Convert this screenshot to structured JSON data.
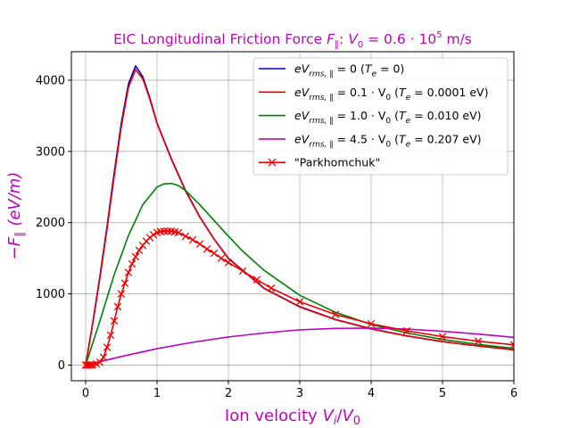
{
  "chart_data": {
    "type": "line",
    "title": "EIC Longitudinal Friction Force F∥: V₀ = 0.6·10⁵ m/s",
    "xlabel": "Ion velocity Vi/V₀",
    "ylabel": "−F∥ (eV/m)",
    "xlim": [
      -0.2,
      6.0
    ],
    "ylim": [
      -220,
      4400
    ],
    "xticks": [
      0,
      1,
      2,
      3,
      4,
      5,
      6
    ],
    "yticks": [
      0,
      1000,
      2000,
      3000,
      4000
    ],
    "grid": true,
    "legend_position": "top-right",
    "text_color": "#bf00bf",
    "series": [
      {
        "name": "eV_rms,∥ = 0 (T_e = 0)",
        "color": "#0000cc",
        "marker": "none",
        "x": [
          0,
          0.1,
          0.2,
          0.3,
          0.4,
          0.5,
          0.6,
          0.7,
          0.8,
          0.9,
          1.0,
          1.2,
          1.4,
          1.6,
          1.8,
          2.0,
          2.5,
          3.0,
          3.5,
          4.0,
          4.5,
          5.0,
          5.5,
          6.0
        ],
        "y": [
          0,
          600,
          1250,
          1950,
          2700,
          3400,
          3950,
          4200,
          4050,
          3750,
          3400,
          2900,
          2450,
          2080,
          1770,
          1500,
          1080,
          820,
          640,
          510,
          410,
          330,
          270,
          215
        ]
      },
      {
        "name": "eV_rms,∥ = 0.1·V₀ (T_e = 0.0001 eV)",
        "color": "#ee0000",
        "marker": "none",
        "x": [
          0,
          0.1,
          0.2,
          0.3,
          0.4,
          0.5,
          0.6,
          0.7,
          0.8,
          0.9,
          1.0,
          1.2,
          1.4,
          1.6,
          1.8,
          2.0,
          2.5,
          3.0,
          3.5,
          4.0,
          4.5,
          5.0,
          5.5,
          6.0
        ],
        "y": [
          0,
          580,
          1220,
          1910,
          2650,
          3350,
          3900,
          4150,
          4020,
          3730,
          3390,
          2890,
          2440,
          2075,
          1765,
          1495,
          1075,
          815,
          637,
          507,
          408,
          328,
          268,
          213
        ]
      },
      {
        "name": "eV_rms,∥ = 1.0·V₀ (T_e = 0.010 eV)",
        "color": "#007f00",
        "marker": "none",
        "x": [
          0,
          0.2,
          0.4,
          0.6,
          0.8,
          1.0,
          1.1,
          1.2,
          1.3,
          1.4,
          1.6,
          1.8,
          2.0,
          2.2,
          2.5,
          3.0,
          3.5,
          4.0,
          4.5,
          5.0,
          5.5,
          6.0
        ],
        "y": [
          0,
          620,
          1270,
          1820,
          2250,
          2500,
          2545,
          2550,
          2520,
          2450,
          2250,
          2030,
          1810,
          1600,
          1330,
          980,
          740,
          570,
          450,
          360,
          290,
          235
        ]
      },
      {
        "name": "eV_rms,∥ = 4.5·V₀ (T_e = 0.207 eV)",
        "color": "#bf00bf",
        "marker": "none",
        "x": [
          0,
          0.5,
          1.0,
          1.5,
          2.0,
          2.5,
          3.0,
          3.5,
          4.0,
          4.5,
          5.0,
          5.5,
          6.0
        ],
        "y": [
          0,
          120,
          230,
          320,
          395,
          450,
          495,
          515,
          520,
          505,
          475,
          435,
          390
        ]
      },
      {
        "name": "\"Parkhomchuk\"",
        "color": "#ee0000",
        "marker": "x",
        "x": [
          0,
          0.025,
          0.05,
          0.075,
          0.1,
          0.15,
          0.2,
          0.25,
          0.3,
          0.35,
          0.4,
          0.45,
          0.5,
          0.55,
          0.6,
          0.65,
          0.7,
          0.75,
          0.8,
          0.85,
          0.9,
          0.95,
          1.0,
          1.05,
          1.1,
          1.15,
          1.2,
          1.25,
          1.3,
          1.4,
          1.5,
          1.6,
          1.7,
          1.8,
          1.9,
          2.0,
          2.2,
          2.4,
          2.6,
          3.0,
          3.5,
          4.0,
          4.5,
          5.0,
          5.5,
          6.0
        ],
        "y": [
          0,
          0,
          0,
          0,
          5,
          15,
          40,
          110,
          250,
          420,
          620,
          820,
          1000,
          1150,
          1300,
          1420,
          1520,
          1610,
          1680,
          1740,
          1790,
          1830,
          1860,
          1875,
          1880,
          1880,
          1880,
          1870,
          1860,
          1810,
          1760,
          1700,
          1630,
          1570,
          1500,
          1440,
          1320,
          1200,
          1080,
          890,
          710,
          580,
          480,
          400,
          335,
          285
        ]
      }
    ]
  }
}
